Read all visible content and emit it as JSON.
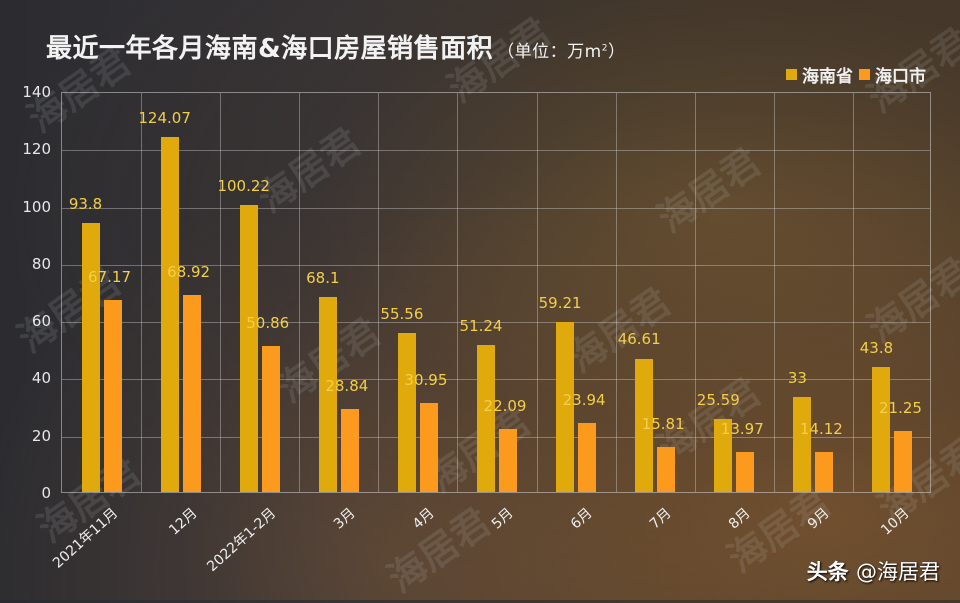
{
  "title": {
    "main": "最近一年各月海南&海口房屋销售面积",
    "unit_prefix": "（单位：万m",
    "unit_sup": "2",
    "unit_suffix": "）"
  },
  "legend": [
    {
      "label": "海南省",
      "color": "#e0aa0c"
    },
    {
      "label": "海口市",
      "color": "#fb9a1c"
    }
  ],
  "footer": {
    "platform": "头条",
    "handle": "@海居君"
  },
  "watermark": "海居君",
  "colors": {
    "series_hainan": "#e0aa0c",
    "series_haikou": "#fb9a1c",
    "value_label": "#f3cf4a"
  },
  "chart_data": {
    "type": "bar",
    "title": "最近一年各月海南&海口房屋销售面积（单位：万m²）",
    "xlabel": "",
    "ylabel": "",
    "ylim": [
      0,
      140
    ],
    "yticks": [
      0,
      20,
      40,
      60,
      80,
      100,
      120,
      140
    ],
    "grid": true,
    "legend_position": "top-right",
    "categories": [
      "2021年11月",
      "12月",
      "2022年1-2月",
      "3月",
      "4月",
      "5月",
      "6月",
      "7月",
      "8月",
      "9月",
      "10月"
    ],
    "series": [
      {
        "name": "海南省",
        "values": [
          93.8,
          124.07,
          100.22,
          68.1,
          55.56,
          51.24,
          59.21,
          46.61,
          25.59,
          33,
          43.8
        ]
      },
      {
        "name": "海口市",
        "values": [
          67.17,
          68.92,
          50.86,
          28.84,
          30.95,
          22.09,
          23.94,
          15.81,
          13.97,
          14.12,
          21.25
        ]
      }
    ],
    "value_labels": {
      "海南省": [
        "93.8",
        "124.07",
        "100.22",
        "68.1",
        "55.56",
        "51.24",
        "59.21",
        "46.61",
        "25.59",
        "33",
        "43.8"
      ],
      "海口市": [
        "67.17",
        "68.92",
        "50.86",
        "28.84",
        "30.95",
        "22.09",
        "23.94",
        "15.81",
        "13.97",
        "14.12",
        "21.25"
      ]
    }
  }
}
